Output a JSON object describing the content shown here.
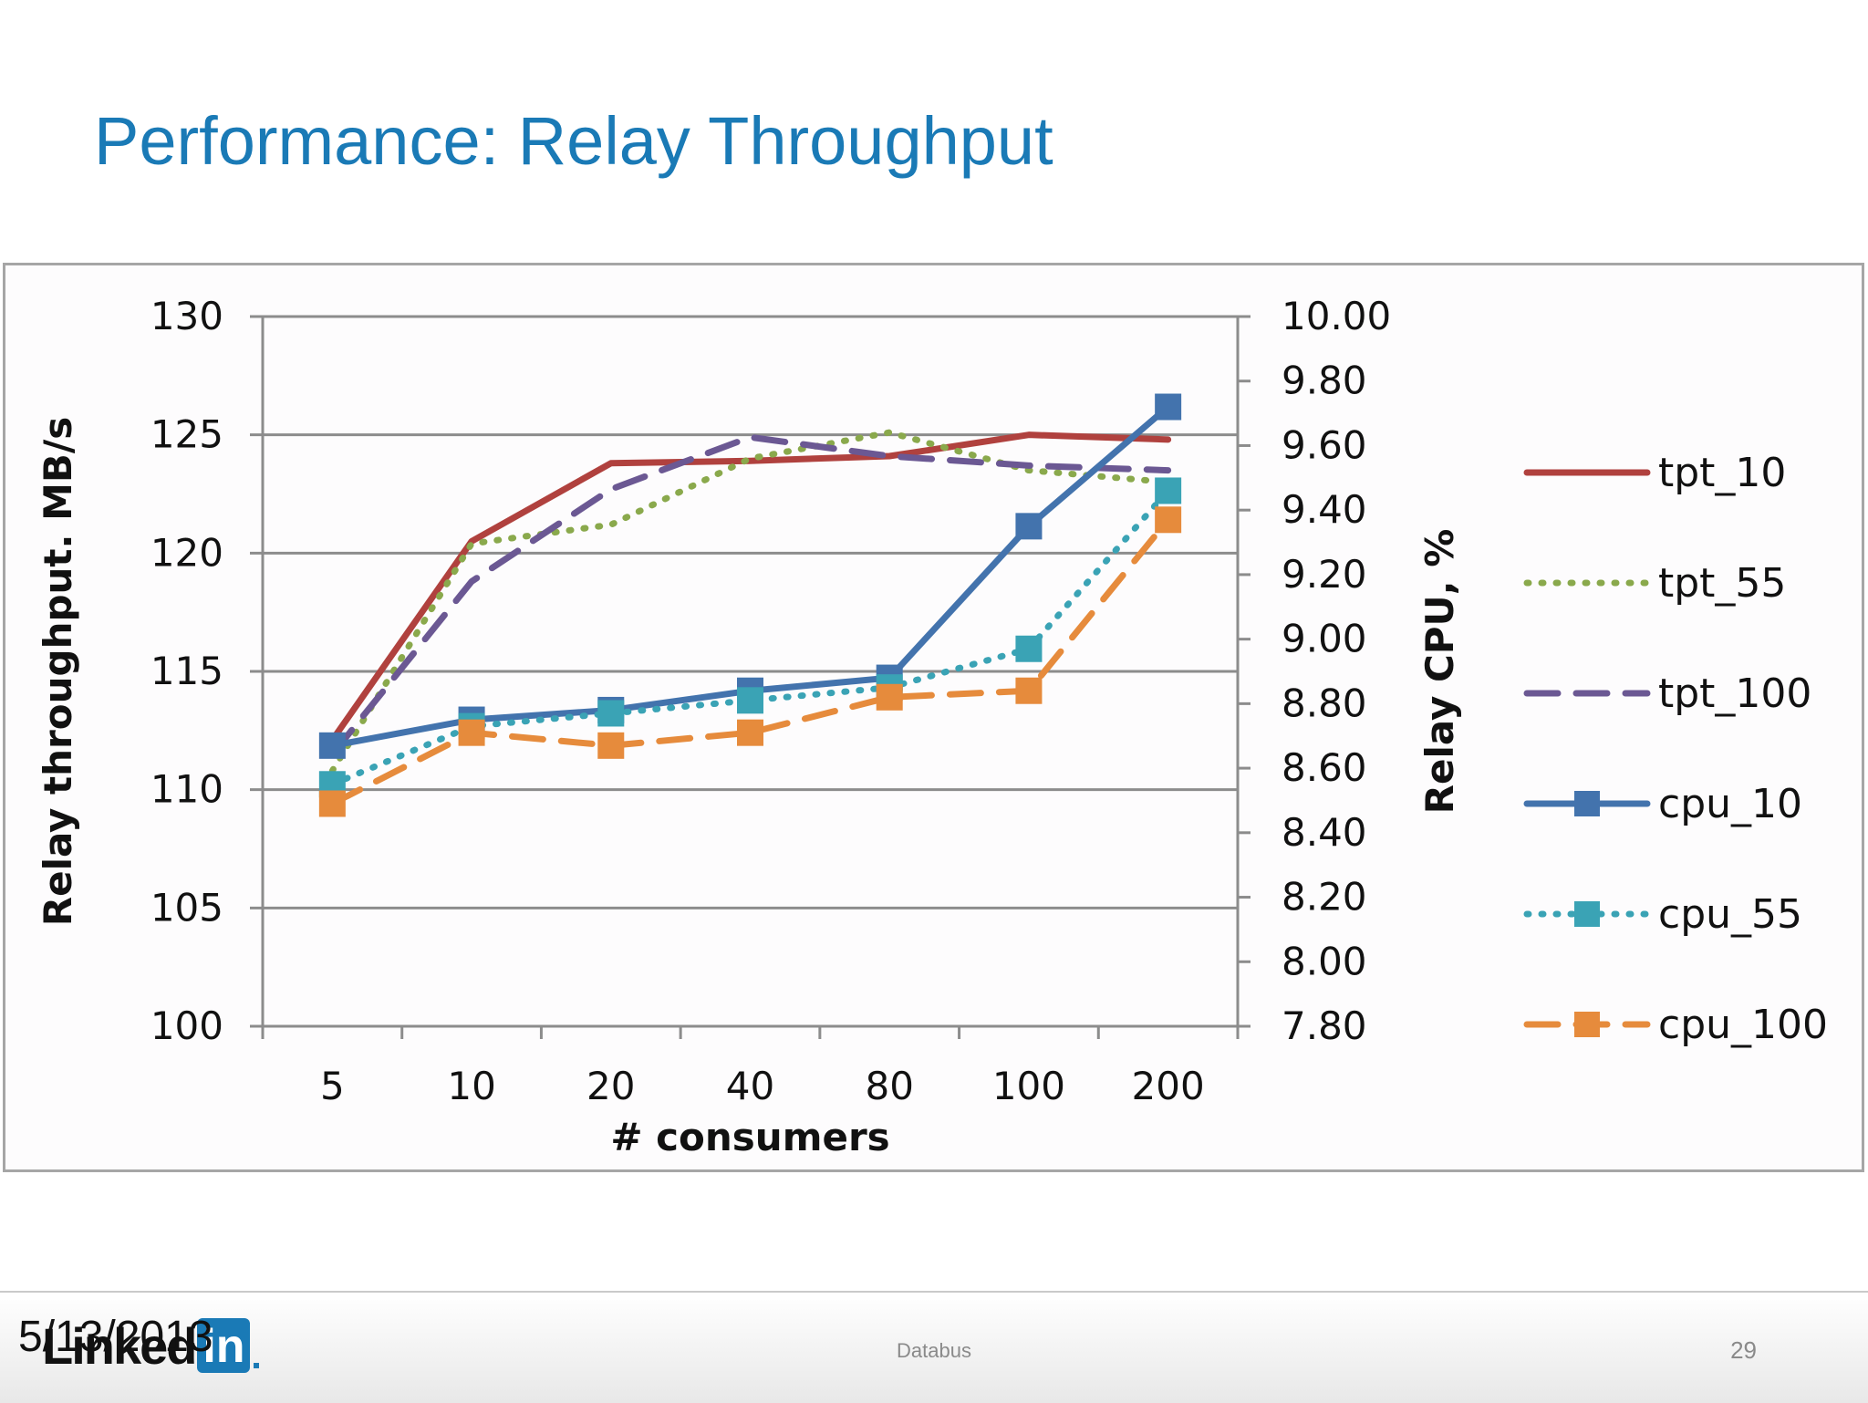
{
  "slide": {
    "title": "Performance: Relay Throughput",
    "footer": {
      "date": "5/13/2013",
      "center_text": "Databus",
      "page_number": "29",
      "logo_text": "Linked",
      "logo_box_text": "in"
    }
  },
  "colors": {
    "title": "#1a7ab6",
    "tpt_10": "#b0413e",
    "tpt_55": "#8aa94c",
    "tpt_100": "#6b5893",
    "cpu_10": "#4373ad",
    "cpu_55": "#3aa3b5",
    "cpu_100": "#e68b3c"
  },
  "chart_data": {
    "type": "line",
    "xlabel": "# consumers",
    "ylabel": "Relay throughput.  MB/s",
    "y2label": "Relay CPU, %",
    "categories": [
      "5",
      "10",
      "20",
      "40",
      "80",
      "100",
      "200"
    ],
    "ylim": [
      100,
      130
    ],
    "yticks": [
      "100",
      "105",
      "110",
      "115",
      "120",
      "125",
      "130"
    ],
    "y2lim": [
      7.8,
      10.0
    ],
    "y2ticks": [
      "7.80",
      "8.00",
      "8.20",
      "8.40",
      "8.60",
      "8.80",
      "9.00",
      "9.20",
      "9.40",
      "9.60",
      "9.80",
      "10.00"
    ],
    "grid": true,
    "legend_position": "right",
    "series": [
      {
        "name": "tpt_10",
        "axis": "left",
        "style": "solid",
        "marker": "none",
        "values": [
          112.1,
          120.5,
          123.8,
          123.9,
          124.1,
          125.0,
          124.8
        ]
      },
      {
        "name": "tpt_55",
        "axis": "left",
        "style": "dotted",
        "marker": "none",
        "values": [
          110.8,
          120.4,
          121.2,
          124.0,
          125.1,
          123.5,
          123.0
        ]
      },
      {
        "name": "tpt_100",
        "axis": "left",
        "style": "dashed",
        "marker": "none",
        "values": [
          111.5,
          118.8,
          122.7,
          124.9,
          124.1,
          123.7,
          123.5
        ]
      },
      {
        "name": "cpu_10",
        "axis": "right",
        "style": "solid",
        "marker": "square",
        "values": [
          8.67,
          8.75,
          8.78,
          8.84,
          8.88,
          9.35,
          9.72
        ]
      },
      {
        "name": "cpu_55",
        "axis": "right",
        "style": "dotted",
        "marker": "square",
        "values": [
          8.55,
          8.73,
          8.77,
          8.81,
          8.85,
          8.97,
          9.46
        ]
      },
      {
        "name": "cpu_100",
        "axis": "right",
        "style": "dashed",
        "marker": "square",
        "values": [
          8.49,
          8.71,
          8.67,
          8.71,
          8.82,
          8.84,
          9.37
        ]
      }
    ]
  }
}
